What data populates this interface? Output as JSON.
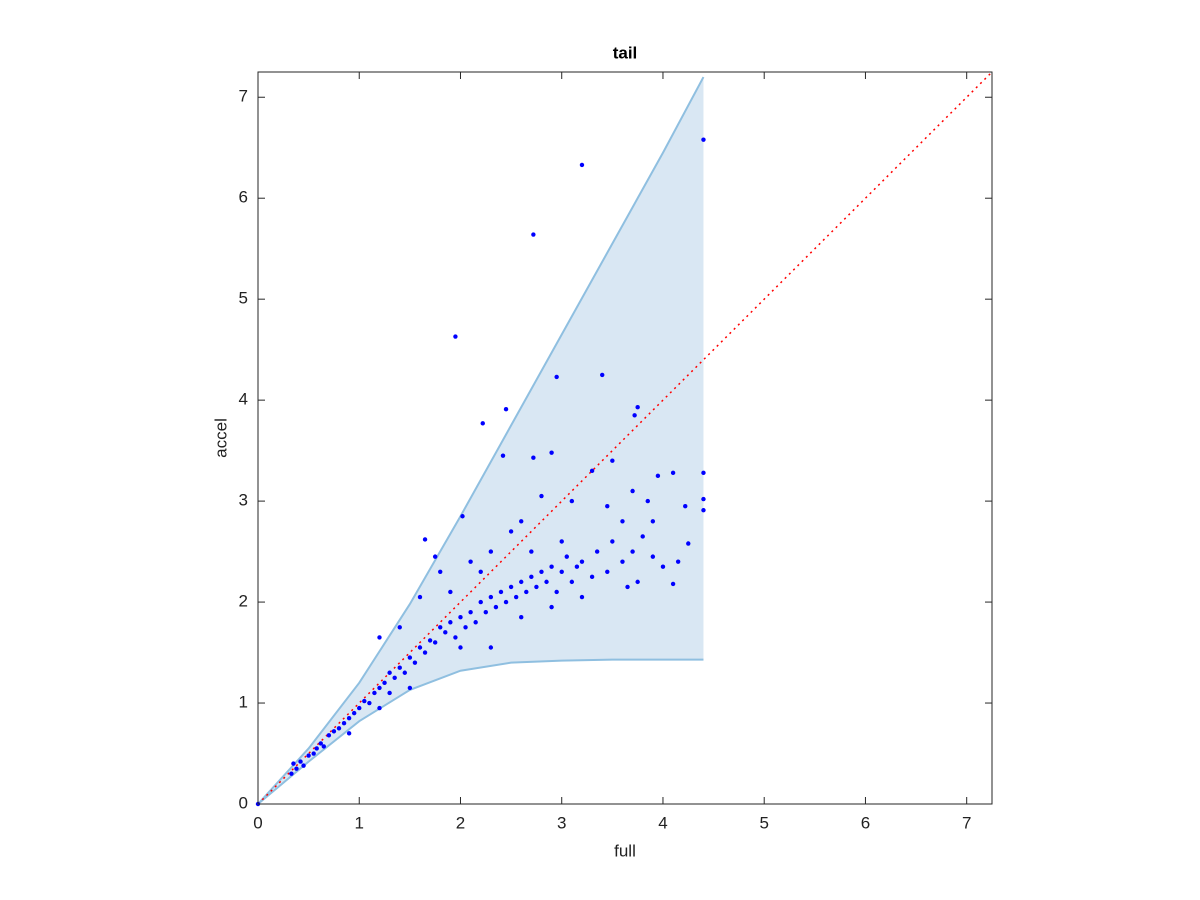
{
  "chart_data": {
    "type": "scatter",
    "title": "tail",
    "x_label": "full",
    "y_label": "accel",
    "xlim": [
      0,
      7.25
    ],
    "ylim": [
      0,
      7.25
    ],
    "xticks": [
      0,
      1,
      2,
      3,
      4,
      5,
      6,
      7
    ],
    "yticks": [
      0,
      1,
      2,
      3,
      4,
      5,
      6,
      7
    ],
    "band": {
      "x": [
        0,
        0.5,
        1,
        1.5,
        2,
        2.5,
        3,
        3.5,
        4,
        4.4
      ],
      "upper": [
        0,
        0.55,
        1.2,
        1.98,
        2.85,
        3.75,
        4.65,
        5.55,
        6.45,
        7.2
      ],
      "lower": [
        0,
        0.42,
        0.82,
        1.13,
        1.32,
        1.4,
        1.42,
        1.43,
        1.43,
        1.43
      ],
      "color": "#d9e7f3",
      "edge_color": "#8fbfe0"
    },
    "reference_line": {
      "x": [
        0,
        7.25
      ],
      "y": [
        0,
        7.25
      ],
      "color": "#ff0000"
    },
    "series": [
      {
        "color": "#0000ff",
        "x": [
          4.4,
          3.2,
          2.72,
          1.95,
          3.4,
          2.95,
          2.45,
          2.22,
          3.75,
          3.72,
          4.4,
          4.4,
          4.4,
          2.42,
          2.72,
          2.9,
          1.65,
          2.02,
          4.25,
          4.22,
          4.1,
          3.95,
          3.85,
          3.75,
          4.1,
          0.33,
          0.35,
          0.38,
          0.42,
          0.45,
          0.5,
          0.55,
          0.58,
          0.62,
          0.65,
          0.7,
          0.75,
          0.8,
          0.85,
          0.9,
          0.95,
          1.0,
          1.05,
          1.1,
          1.15,
          1.2,
          1.25,
          1.3,
          1.3,
          1.35,
          1.4,
          1.45,
          1.5,
          1.55,
          1.6,
          1.65,
          1.7,
          1.75,
          1.8,
          1.85,
          1.9,
          1.95,
          2.0,
          2.05,
          2.1,
          2.15,
          2.2,
          2.25,
          2.3,
          2.35,
          2.4,
          2.45,
          2.5,
          2.55,
          2.6,
          2.65,
          2.7,
          2.75,
          2.8,
          2.85,
          2.9,
          2.95,
          3.0,
          3.05,
          3.1,
          3.15,
          3.2,
          3.3,
          3.35,
          3.45,
          3.5,
          3.6,
          3.65,
          3.7,
          3.8,
          3.9,
          4.0,
          4.15,
          1.2,
          1.4,
          1.6,
          1.8,
          1.75,
          2.1,
          2.3,
          2.5,
          2.6,
          2.8,
          3.1,
          3.3,
          3.5,
          3.45,
          3.6,
          3.7,
          3.9,
          2.0,
          2.3,
          2.6,
          2.9,
          3.2,
          1.5,
          1.2,
          0.9,
          1.9,
          2.2,
          2.7,
          3.0,
          0
        ],
        "values": [
          6.58,
          6.33,
          5.64,
          4.63,
          4.25,
          4.23,
          3.91,
          3.77,
          3.93,
          3.85,
          3.28,
          3.02,
          2.91,
          3.45,
          3.43,
          3.48,
          2.62,
          2.85,
          2.58,
          2.95,
          3.28,
          3.25,
          3.0,
          2.2,
          2.18,
          0.3,
          0.4,
          0.35,
          0.42,
          0.38,
          0.48,
          0.5,
          0.55,
          0.6,
          0.57,
          0.68,
          0.72,
          0.75,
          0.8,
          0.85,
          0.9,
          0.95,
          1.02,
          1.0,
          1.1,
          1.15,
          1.2,
          1.1,
          1.3,
          1.25,
          1.35,
          1.3,
          1.45,
          1.4,
          1.55,
          1.5,
          1.62,
          1.6,
          1.75,
          1.7,
          1.8,
          1.65,
          1.85,
          1.75,
          1.9,
          1.8,
          2.0,
          1.9,
          2.05,
          1.95,
          2.1,
          2.0,
          2.15,
          2.05,
          2.2,
          2.1,
          2.25,
          2.15,
          2.3,
          2.2,
          2.35,
          2.1,
          2.3,
          2.45,
          2.2,
          2.35,
          2.4,
          2.25,
          2.5,
          2.3,
          2.6,
          2.4,
          2.15,
          2.5,
          2.65,
          2.45,
          2.35,
          2.4,
          1.65,
          1.75,
          2.05,
          2.3,
          2.45,
          2.4,
          2.5,
          2.7,
          2.8,
          3.05,
          3.0,
          3.3,
          3.4,
          2.95,
          2.8,
          3.1,
          2.8,
          1.55,
          1.55,
          1.85,
          1.95,
          2.05,
          1.15,
          0.95,
          0.7,
          2.1,
          2.3,
          2.5,
          2.6,
          0
        ]
      }
    ]
  }
}
